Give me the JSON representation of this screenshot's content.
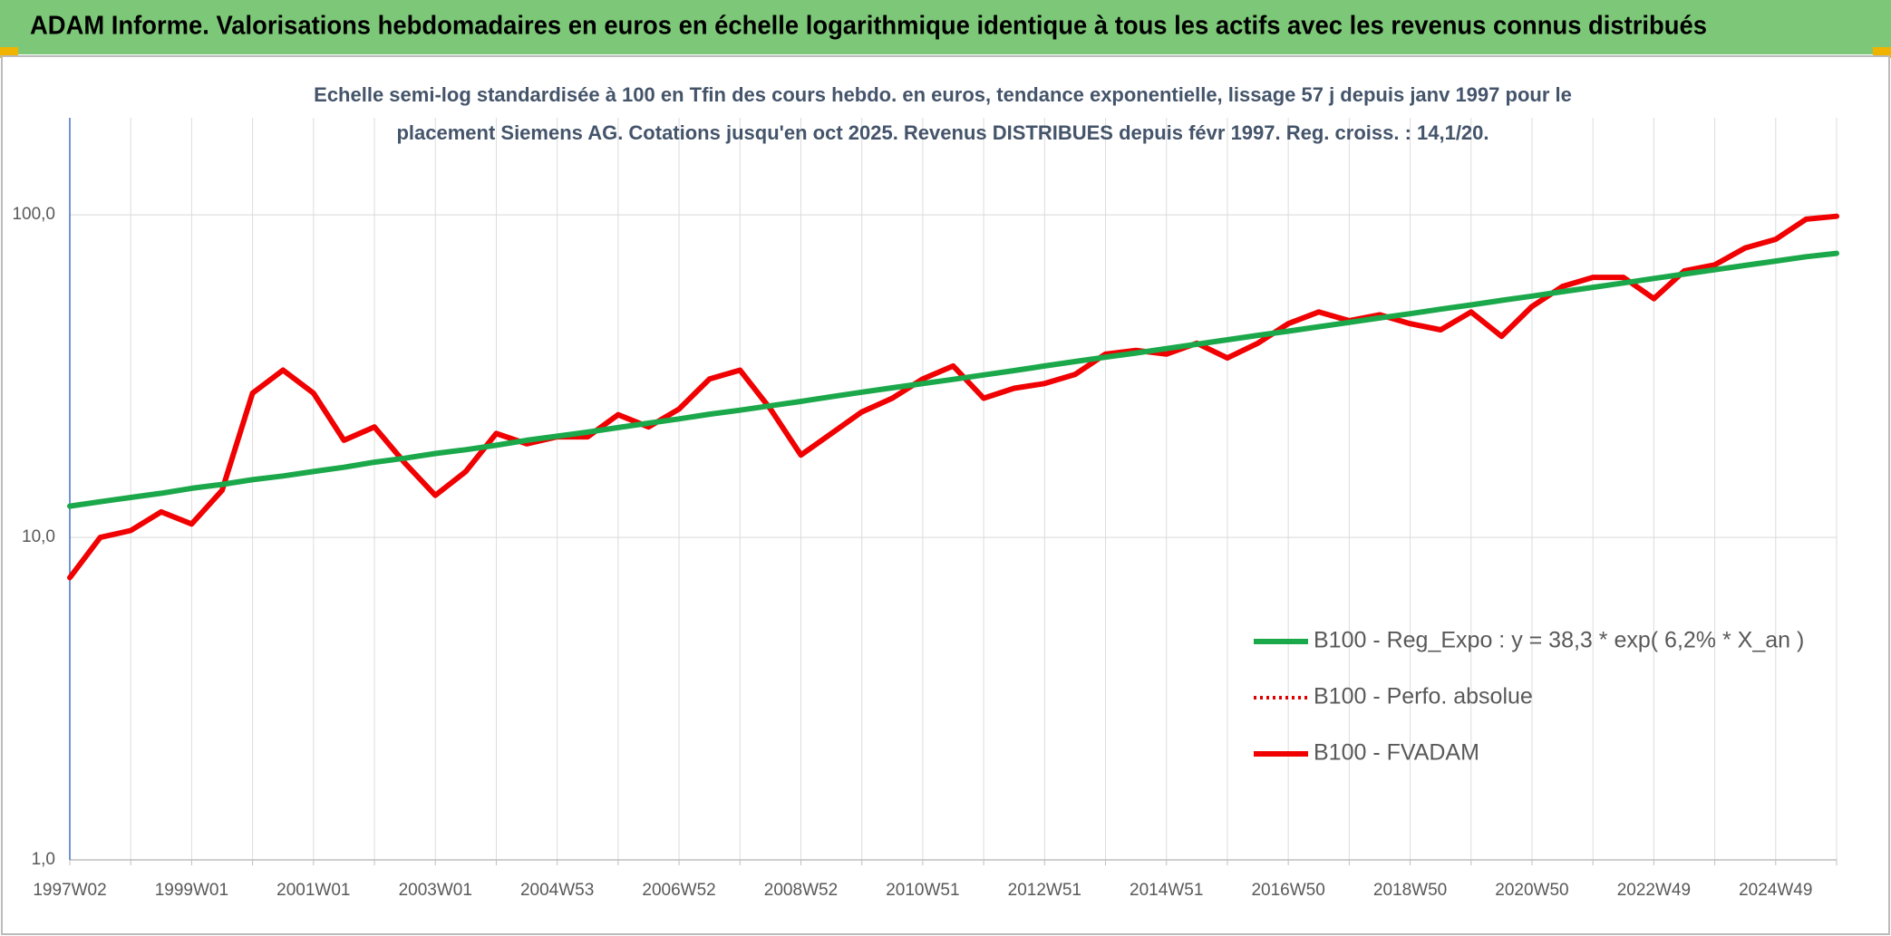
{
  "chart_data": {
    "type": "line",
    "title": "ADAM Informe. Valorisations hebdomadaires en euros en échelle logarithmique identique à tous les actifs avec les revenus connus distribués",
    "subtitle": "Echelle semi-log standardisée à 100 en Tfin des cours hebdo. en euros, tendance exponentielle, lissage 57 j depuis janv 1997 pour le placement Siemens AG. Cotations jusqu'en oct 2025. Revenus DISTRIBUES depuis févr 1997. Reg. croiss. : 14,1/20.",
    "categories": [
      "1997W02",
      null,
      null,
      null,
      "1999W01",
      null,
      null,
      null,
      "2001W01",
      null,
      null,
      null,
      "2003W01",
      null,
      null,
      null,
      "2004W53",
      null,
      null,
      null,
      "2006W52",
      null,
      null,
      null,
      "2008W52",
      null,
      null,
      null,
      "2010W51",
      null,
      null,
      null,
      "2012W51",
      null,
      null,
      null,
      "2014W51",
      null,
      null,
      null,
      "2016W50",
      null,
      null,
      null,
      "2018W50",
      null,
      null,
      null,
      "2020W50",
      null,
      null,
      null,
      "2022W49",
      null,
      null,
      null,
      "2024W49",
      null,
      null
    ],
    "log_scale": true,
    "ylim": [
      1,
      200
    ],
    "yticks": [
      {
        "value": 1,
        "label": "1,0"
      },
      {
        "value": 10,
        "label": "10,0"
      },
      {
        "value": 100,
        "label": "100,0"
      }
    ],
    "grid": true,
    "legend_position": "right",
    "series": [
      {
        "name": "B100 - Reg_Expo : y = 38,3 * exp( 6,2% *  X_an )",
        "color": "#1aa84a",
        "style": "solid",
        "values": [
          12.5,
          12.9,
          13.3,
          13.7,
          14.2,
          14.6,
          15.1,
          15.5,
          16.0,
          16.5,
          17.1,
          17.6,
          18.2,
          18.7,
          19.3,
          20.0,
          20.6,
          21.2,
          21.9,
          22.6,
          23.3,
          24.1,
          24.8,
          25.6,
          26.4,
          27.3,
          28.2,
          29.1,
          30.0,
          30.9,
          31.9,
          32.9,
          34.0,
          35.1,
          36.2,
          37.3,
          38.5,
          39.7,
          41.0,
          42.3,
          43.6,
          45.0,
          46.4,
          47.9,
          49.4,
          51.0,
          52.6,
          54.3,
          56.0,
          57.8,
          59.6,
          61.5,
          63.5,
          65.5,
          67.6,
          69.7,
          71.9,
          74.2,
          76.0
        ]
      },
      {
        "name": "B100 - Perfo. absolue",
        "color": "#e00000",
        "style": "dotted",
        "values": [
          7.5,
          10,
          10.5,
          12,
          11,
          14,
          28,
          33,
          28,
          20,
          22,
          17,
          13.5,
          16,
          21,
          19.5,
          20.5,
          20.5,
          24,
          22,
          25,
          31,
          33,
          25,
          18,
          21,
          24.5,
          27,
          31,
          34,
          27,
          29,
          30,
          32,
          37,
          38,
          37,
          40,
          36,
          40,
          46,
          50,
          47,
          49,
          46,
          44,
          50,
          42,
          52,
          60,
          64,
          64,
          55,
          67,
          70,
          79,
          84,
          97,
          99
        ]
      },
      {
        "name": "B100 - FVADAM",
        "color": "#f00000",
        "style": "solid",
        "values": [
          7.5,
          10,
          10.5,
          12,
          11,
          14,
          28,
          33,
          28,
          20,
          22,
          17,
          13.5,
          16,
          21,
          19.5,
          20.5,
          20.5,
          24,
          22,
          25,
          31,
          33,
          25,
          18,
          21,
          24.5,
          27,
          31,
          34,
          27,
          29,
          30,
          32,
          37,
          38,
          37,
          40,
          36,
          40,
          46,
          50,
          47,
          49,
          46,
          44,
          50,
          42,
          52,
          60,
          64,
          64,
          55,
          67,
          70,
          79,
          84,
          97,
          99
        ]
      }
    ]
  }
}
